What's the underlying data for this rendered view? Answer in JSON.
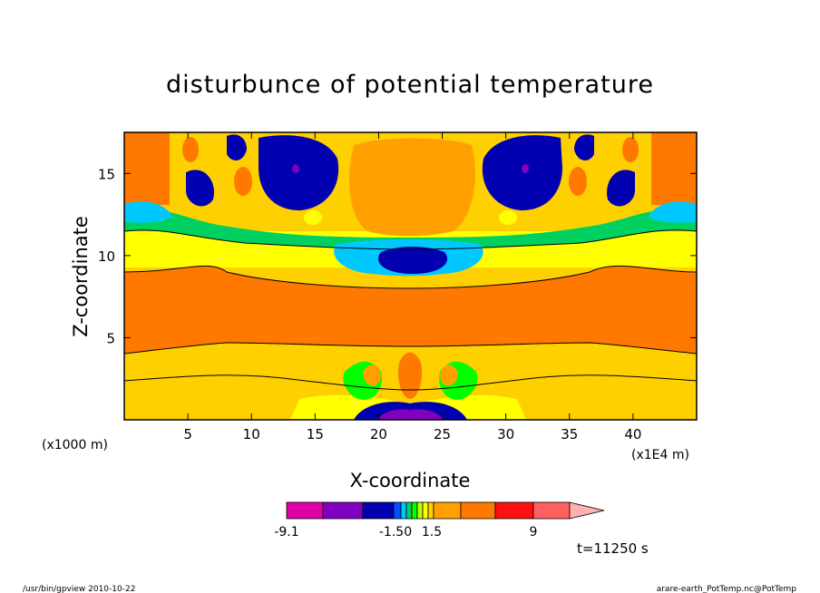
{
  "chart_data": {
    "type": "heatmap",
    "title": "disturbunce of potential temperature",
    "xlabel": "X-coordinate",
    "ylabel": "Z-coordinate",
    "x_unit_left": "(x1000 m)",
    "x_unit_right": "(x1E4 m)",
    "xlim": [
      0,
      45
    ],
    "ylim": [
      0,
      17.5
    ],
    "x_ticks": [
      "5",
      "10",
      "15",
      "20",
      "25",
      "30",
      "35",
      "40"
    ],
    "y_ticks": [
      "5",
      "10",
      "15"
    ],
    "x_tick_values": [
      5,
      10,
      15,
      20,
      25,
      30,
      35,
      40
    ],
    "y_tick_values": [
      5,
      10,
      15
    ],
    "colorbar": {
      "labels": [
        "-9.1",
        "-1.50",
        "1.5",
        "9"
      ],
      "colors": [
        "#e000a8",
        "#8000c0",
        "#0000b0",
        "#0050ff",
        "#00c8ff",
        "#00d060",
        "#00ff00",
        "#c0ff00",
        "#ffff00",
        "#ffd000",
        "#ffa000",
        "#ff7800",
        "#ff1010",
        "#ff6060",
        "#ffb0b0"
      ]
    },
    "time_label": "t=11250 s"
  },
  "footer": {
    "left": "/usr/bin/gpview   2010-10-22",
    "right": "arare-earth_PotTemp.nc@PotTemp"
  }
}
